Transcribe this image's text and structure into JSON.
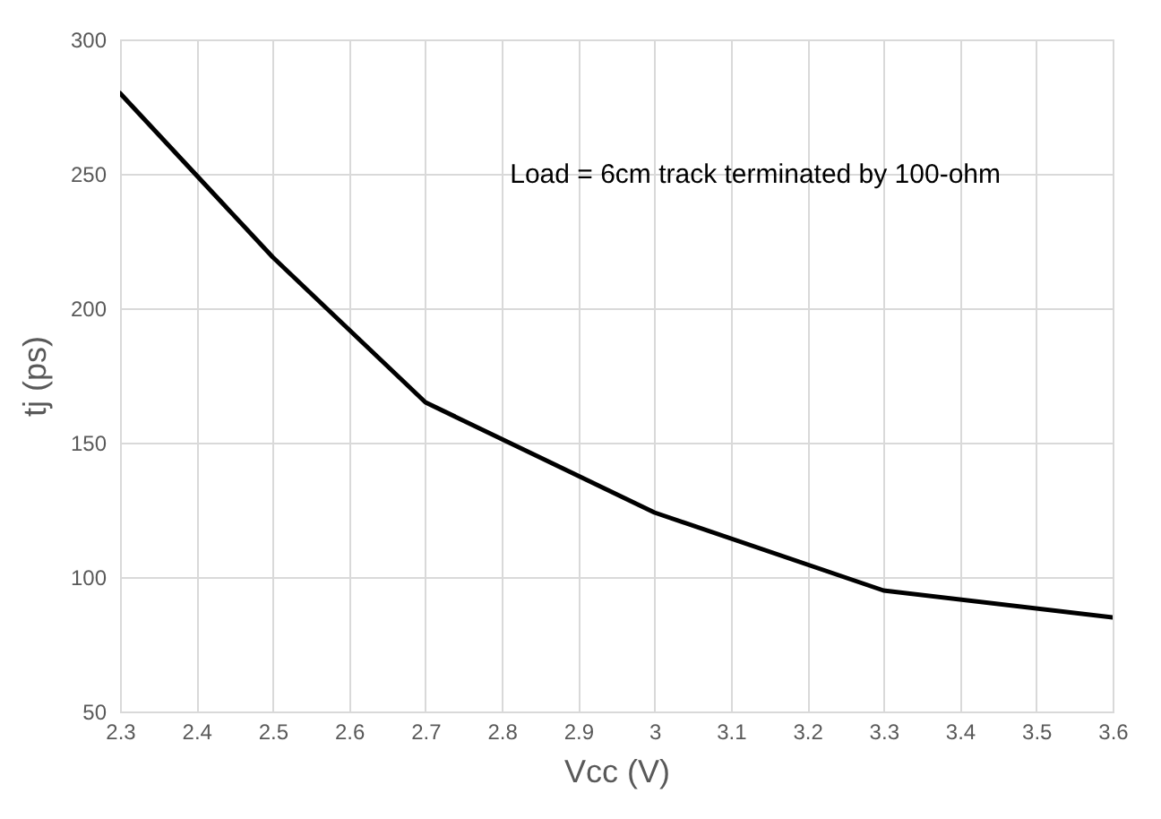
{
  "chart_data": {
    "type": "line",
    "xlabel": "Vcc (V)",
    "ylabel": "tj (ps)",
    "x": [
      2.3,
      2.5,
      2.7,
      3.0,
      3.3,
      3.6
    ],
    "series": [
      {
        "color": "#000000",
        "values": [
          280,
          219,
          165,
          124,
          95,
          85
        ]
      }
    ],
    "xlim": [
      2.3,
      3.6
    ],
    "xticks": [
      2.3,
      2.4,
      2.5,
      2.6,
      2.7,
      2.8,
      2.9,
      {
        "value": 3,
        "label": "3"
      },
      3.1,
      3.2,
      3.3,
      3.4,
      3.5,
      3.6
    ],
    "ylim": [
      50,
      300
    ],
    "yticks": [
      50,
      100,
      150,
      200,
      250,
      300
    ],
    "grid": true,
    "marker": "none",
    "line_style": "solid",
    "annotations": [
      "Load = 6cm track terminated by 100-ohm"
    ]
  }
}
